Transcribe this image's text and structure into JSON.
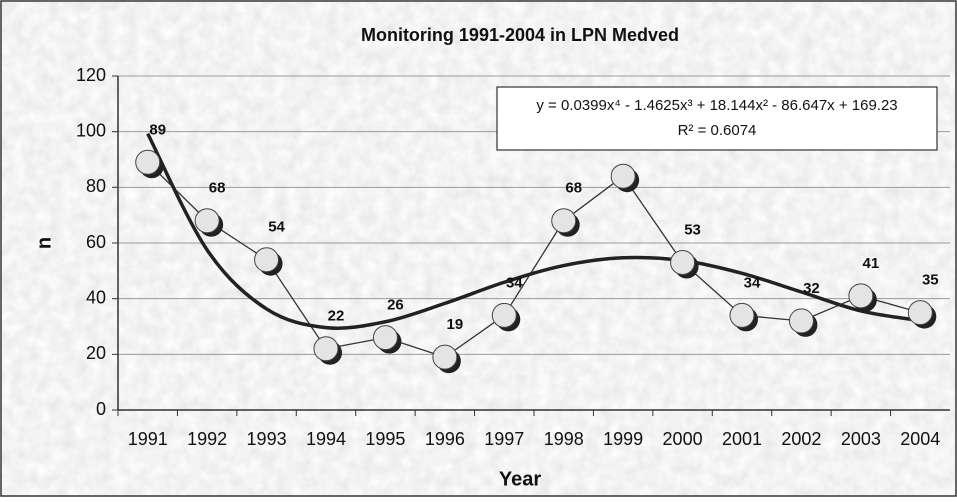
{
  "chart_data": {
    "type": "line",
    "title": "Monitoring 1991-2004 in LPN Medved",
    "x_label": "Year",
    "y_label": "n",
    "categories": [
      "1991",
      "1992",
      "1993",
      "1994",
      "1995",
      "1996",
      "1997",
      "1998",
      "1999",
      "2000",
      "2001",
      "2002",
      "2003",
      "2004"
    ],
    "series": [
      {
        "name": "n",
        "color": "#333333",
        "values": [
          89,
          68,
          54,
          22,
          26,
          19,
          34,
          68,
          84,
          53,
          34,
          32,
          41,
          35
        ]
      },
      {
        "name": "trend",
        "color": "#222222",
        "values": [
          99.3,
          57.5,
          36.3,
          29.6,
          31.7,
          38.3,
          45.9,
          51.9,
          54.7,
          53.7,
          49.1,
          42.4,
          35.6,
          32.1
        ]
      }
    ],
    "trendline_equation": "y = 0.0399x⁴ - 1.4625x³ + 18.144x² - 86.647x + 169.23",
    "trendline_r2": "R² = 0.6074",
    "ylim": [
      0,
      120
    ],
    "yticks": [
      0,
      20,
      40,
      60,
      80,
      100,
      120
    ],
    "grid": true
  }
}
